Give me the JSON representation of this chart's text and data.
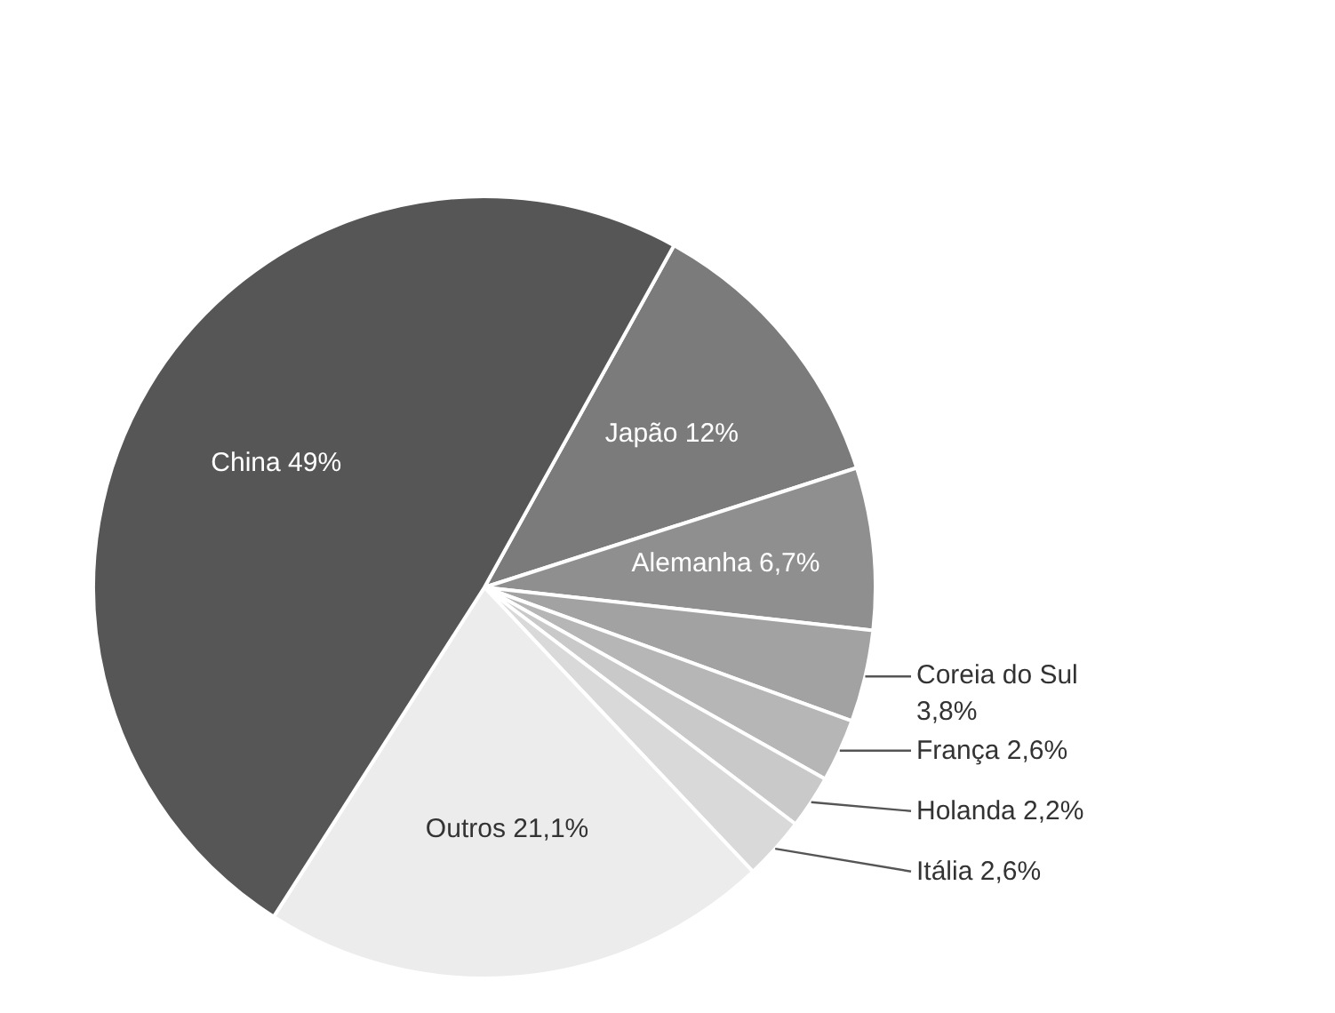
{
  "chart_data": {
    "type": "pie",
    "categories": [
      "Japão",
      "Alemanha",
      "Coreia do Sul",
      "França",
      "Holanda",
      "Itália",
      "Outros",
      "China"
    ],
    "values": [
      12,
      6.7,
      3.8,
      2.6,
      2.2,
      2.6,
      21.1,
      49
    ],
    "value_labels": [
      "12%",
      "6,7%",
      "3,8%",
      "2,6%",
      "2,2%",
      "2,6%",
      "21,1%",
      "49%"
    ],
    "colors": [
      "#7b7b7b",
      "#8f8f8f",
      "#a2a2a2",
      "#b6b6b6",
      "#c9c9c9",
      "#d9d9d9",
      "#ececec",
      "#565656"
    ],
    "legend": false
  }
}
